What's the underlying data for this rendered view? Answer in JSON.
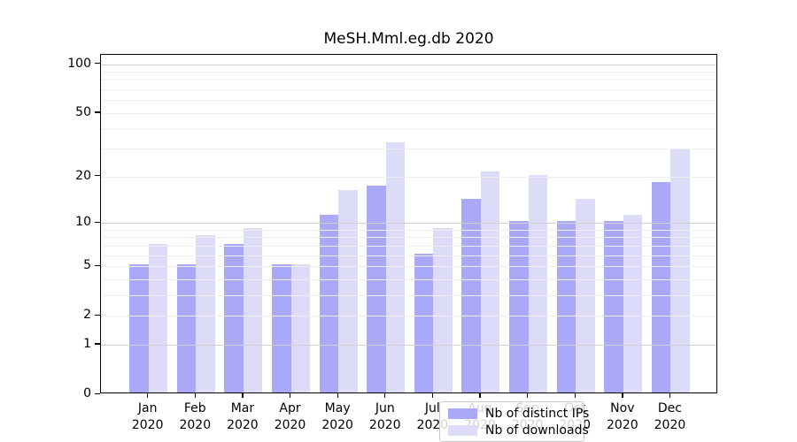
{
  "chart_data": {
    "type": "bar",
    "title": "MeSH.Mml.eg.db 2020",
    "scale": "log1p",
    "ylim": [
      0,
      115
    ],
    "yticks": [
      100,
      50,
      20,
      10,
      5,
      2,
      1,
      0
    ],
    "gridlines": {
      "major": [
        1,
        10,
        100
      ],
      "minor": [
        2,
        3,
        4,
        5,
        6,
        7,
        8,
        9,
        20,
        30,
        40,
        50,
        60,
        70,
        80,
        90
      ]
    },
    "grid_over_bars": true,
    "categories": [
      "Jan",
      "Feb",
      "Mar",
      "Apr",
      "May",
      "Jun",
      "Jul",
      "Aug",
      "Sep",
      "Oct",
      "Nov",
      "Dec"
    ],
    "year": "2020",
    "series": [
      {
        "name": "Nb of distinct IPs",
        "color": "#a9a9f8",
        "values": [
          5,
          5,
          7,
          5,
          11,
          17,
          6,
          14,
          10,
          10,
          10,
          18
        ]
      },
      {
        "name": "Nb of downloads",
        "color": "#dcdcf9",
        "values": [
          7,
          8,
          9,
          5,
          16,
          32,
          9,
          21,
          20,
          14,
          11,
          29
        ]
      }
    ],
    "legend_position": "inside-bottom-center",
    "colors": {
      "frame": "#000000",
      "gridline_major": "#d0d0d0",
      "gridline_minor": "#eeeeee",
      "legend_border": "#cccccc"
    }
  }
}
